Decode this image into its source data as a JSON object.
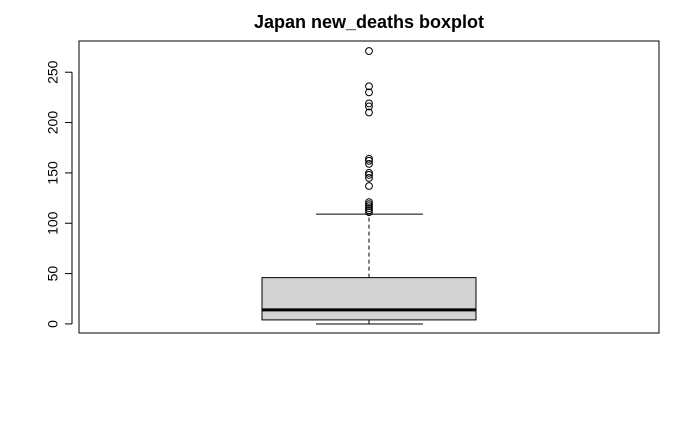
{
  "chart_data": {
    "type": "box",
    "title": "Japan new_deaths boxplot",
    "xlabel": "",
    "ylabel": "",
    "ylim": [
      -9,
      281
    ],
    "yticks": [
      0,
      50,
      100,
      150,
      200,
      250
    ],
    "ytick_labels": [
      "0",
      "50",
      "100",
      "150",
      "200",
      "250"
    ],
    "grid": false,
    "series": [
      {
        "whisker_low": 0,
        "q1": 4,
        "median": 14,
        "q3": 46,
        "whisker_high": 109,
        "outliers": [
          111,
          113,
          115,
          117,
          119,
          121,
          137,
          145,
          148,
          150,
          159,
          162,
          164,
          210,
          216,
          219,
          230,
          236,
          271
        ]
      }
    ],
    "colors": {
      "box_fill": "#d3d3d3",
      "stroke": "#000000",
      "background": "#ffffff"
    }
  }
}
